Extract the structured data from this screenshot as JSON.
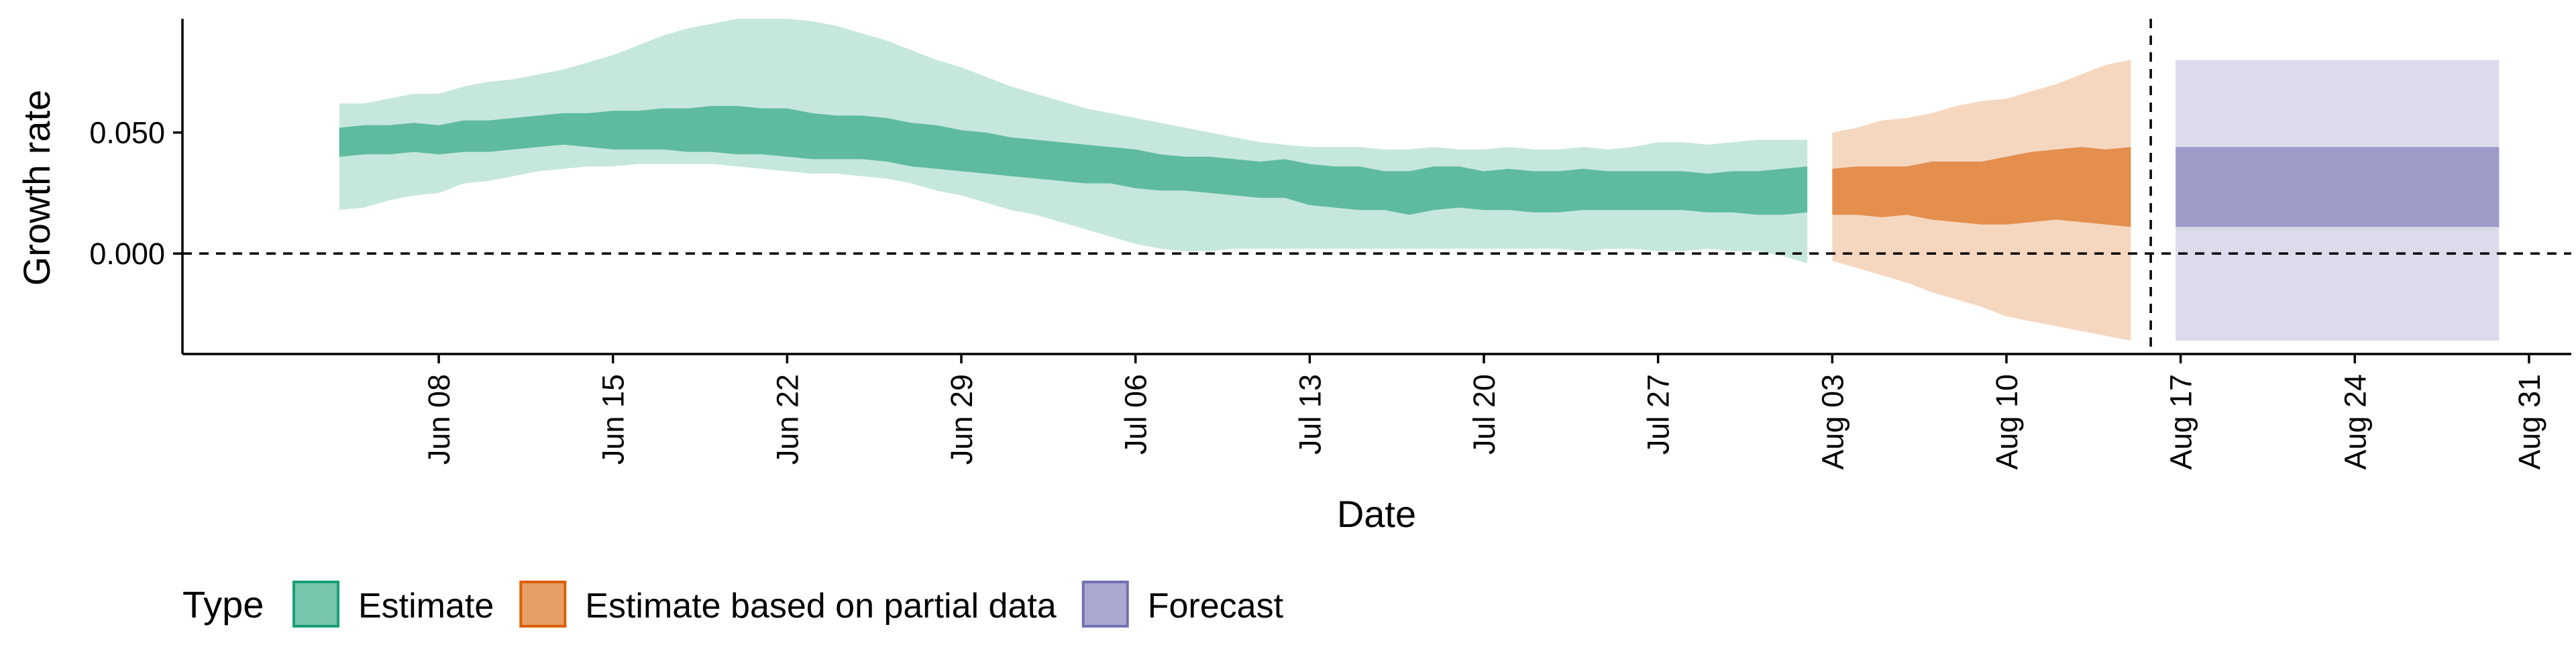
{
  "chart_data": {
    "type": "area",
    "xlabel": "Date",
    "ylabel": "Growth rate",
    "xlim_days_from_jun01": [
      -3.3,
      92.7
    ],
    "ylim": [
      -0.0415,
      0.097
    ],
    "x_ticks": [
      {
        "day": 7,
        "label": "Jun 08"
      },
      {
        "day": 14,
        "label": "Jun 15"
      },
      {
        "day": 21,
        "label": "Jun 22"
      },
      {
        "day": 28,
        "label": "Jun 29"
      },
      {
        "day": 35,
        "label": "Jul 06"
      },
      {
        "day": 42,
        "label": "Jul 13"
      },
      {
        "day": 49,
        "label": "Jul 20"
      },
      {
        "day": 56,
        "label": "Jul 27"
      },
      {
        "day": 63,
        "label": "Aug 03"
      },
      {
        "day": 70,
        "label": "Aug 10"
      },
      {
        "day": 77,
        "label": "Aug 17"
      },
      {
        "day": 84,
        "label": "Aug 24"
      },
      {
        "day": 91,
        "label": "Aug 31"
      }
    ],
    "y_ticks": [
      {
        "value": 0.05,
        "label": "0.050"
      },
      {
        "value": 0.0,
        "label": "0.000"
      }
    ],
    "reference_lines": {
      "horizontal_y": 0.0,
      "vertical_x_day": 75.8
    },
    "legend": {
      "title": "Type",
      "position": "bottom-left",
      "items": [
        {
          "label": "Estimate",
          "fill": "#1B9E77",
          "outline": "#1B9E77"
        },
        {
          "label": "Estimate based on partial data",
          "fill": "#D95F02",
          "outline": "#D95F02"
        },
        {
          "label": "Forecast",
          "fill": "#7570B3",
          "outline": "#7570B3"
        }
      ]
    },
    "series": [
      {
        "name": "Estimate",
        "color": "#1B9E77",
        "x_day": [
          3,
          4,
          5,
          6,
          7,
          8,
          9,
          10,
          11,
          12,
          13,
          14,
          15,
          16,
          17,
          18,
          19,
          20,
          21,
          22,
          23,
          24,
          25,
          26,
          27,
          28,
          29,
          30,
          31,
          32,
          33,
          34,
          35,
          36,
          37,
          38,
          39,
          40,
          41,
          42,
          43,
          44,
          45,
          46,
          47,
          48,
          49,
          50,
          51,
          52,
          53,
          54,
          55,
          56,
          57,
          58,
          59,
          60,
          61,
          62
        ],
        "outer_upper": [
          0.062,
          0.062,
          0.064,
          0.066,
          0.066,
          0.069,
          0.071,
          0.072,
          0.074,
          0.076,
          0.079,
          0.082,
          0.086,
          0.09,
          0.093,
          0.095,
          0.097,
          0.097,
          0.097,
          0.096,
          0.094,
          0.091,
          0.088,
          0.084,
          0.08,
          0.077,
          0.073,
          0.069,
          0.066,
          0.063,
          0.06,
          0.058,
          0.056,
          0.054,
          0.052,
          0.05,
          0.048,
          0.046,
          0.045,
          0.044,
          0.044,
          0.044,
          0.043,
          0.043,
          0.044,
          0.043,
          0.043,
          0.044,
          0.043,
          0.043,
          0.044,
          0.043,
          0.044,
          0.046,
          0.046,
          0.045,
          0.046,
          0.047,
          0.047,
          0.047
        ],
        "inner_upper": [
          0.052,
          0.053,
          0.053,
          0.054,
          0.053,
          0.055,
          0.055,
          0.056,
          0.057,
          0.058,
          0.058,
          0.059,
          0.059,
          0.06,
          0.06,
          0.061,
          0.061,
          0.06,
          0.06,
          0.058,
          0.057,
          0.057,
          0.056,
          0.054,
          0.053,
          0.051,
          0.05,
          0.048,
          0.047,
          0.046,
          0.045,
          0.044,
          0.043,
          0.041,
          0.04,
          0.04,
          0.039,
          0.038,
          0.039,
          0.037,
          0.036,
          0.036,
          0.034,
          0.034,
          0.036,
          0.036,
          0.034,
          0.035,
          0.034,
          0.034,
          0.035,
          0.034,
          0.034,
          0.034,
          0.034,
          0.033,
          0.034,
          0.034,
          0.035,
          0.036
        ],
        "inner_lower": [
          0.04,
          0.041,
          0.041,
          0.042,
          0.041,
          0.042,
          0.042,
          0.043,
          0.044,
          0.045,
          0.044,
          0.043,
          0.043,
          0.043,
          0.042,
          0.042,
          0.041,
          0.041,
          0.04,
          0.039,
          0.039,
          0.039,
          0.038,
          0.036,
          0.035,
          0.034,
          0.033,
          0.032,
          0.031,
          0.03,
          0.029,
          0.029,
          0.027,
          0.026,
          0.026,
          0.025,
          0.024,
          0.023,
          0.023,
          0.02,
          0.019,
          0.018,
          0.018,
          0.016,
          0.018,
          0.019,
          0.018,
          0.018,
          0.017,
          0.017,
          0.018,
          0.018,
          0.018,
          0.018,
          0.018,
          0.017,
          0.017,
          0.016,
          0.016,
          0.017
        ],
        "outer_lower": [
          0.018,
          0.019,
          0.022,
          0.024,
          0.025,
          0.029,
          0.03,
          0.032,
          0.034,
          0.035,
          0.036,
          0.036,
          0.037,
          0.037,
          0.037,
          0.037,
          0.036,
          0.035,
          0.034,
          0.033,
          0.033,
          0.032,
          0.031,
          0.029,
          0.026,
          0.024,
          0.021,
          0.018,
          0.016,
          0.013,
          0.01,
          0.007,
          0.004,
          0.002,
          0.001,
          0.001,
          0.002,
          0.002,
          0.002,
          0.002,
          0.002,
          0.002,
          0.002,
          0.002,
          0.002,
          0.002,
          0.002,
          0.002,
          0.002,
          0.002,
          0.001,
          0.002,
          0.002,
          0.001,
          0.001,
          0.002,
          0.001,
          0.001,
          -0.001,
          -0.004
        ]
      },
      {
        "name": "Estimate based on partial data",
        "color": "#D95F02",
        "x_day": [
          63,
          64,
          65,
          66,
          67,
          68,
          69,
          70,
          71,
          72,
          73,
          74,
          75
        ],
        "outer_upper": [
          0.05,
          0.052,
          0.055,
          0.056,
          0.058,
          0.061,
          0.063,
          0.064,
          0.067,
          0.07,
          0.074,
          0.078,
          0.08
        ],
        "inner_upper": [
          0.035,
          0.036,
          0.036,
          0.036,
          0.038,
          0.038,
          0.038,
          0.04,
          0.042,
          0.043,
          0.044,
          0.043,
          0.044
        ],
        "inner_lower": [
          0.016,
          0.016,
          0.015,
          0.016,
          0.014,
          0.013,
          0.012,
          0.012,
          0.013,
          0.014,
          0.013,
          0.012,
          0.011
        ],
        "outer_lower": [
          -0.003,
          -0.006,
          -0.009,
          -0.012,
          -0.016,
          -0.019,
          -0.022,
          -0.026,
          -0.028,
          -0.03,
          -0.032,
          -0.034,
          -0.036
        ]
      },
      {
        "name": "Forecast",
        "color": "#7570B3",
        "x_day": [
          76.8,
          89.8
        ],
        "outer_upper": [
          0.08,
          0.08
        ],
        "inner_upper": [
          0.044,
          0.044
        ],
        "inner_lower": [
          0.011,
          0.011
        ],
        "outer_lower": [
          -0.036,
          -0.036
        ]
      }
    ]
  }
}
